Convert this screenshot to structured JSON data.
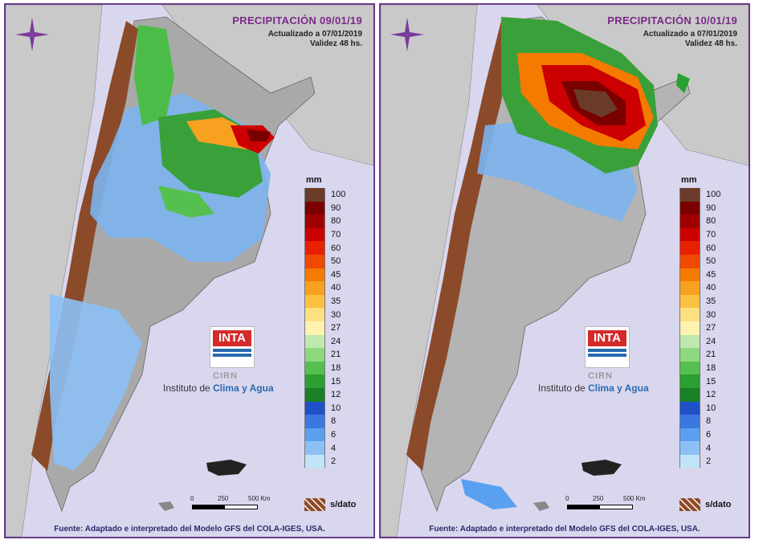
{
  "panels": [
    {
      "title": "PRECIPITACIÓN 09/01/19",
      "updated": "Actualizado a 07/01/2019",
      "validity": "Validez 48 hs."
    },
    {
      "title": "PRECIPITACIÓN 10/01/19",
      "updated": "Actualizado a 07/01/2019",
      "validity": "Validez 48 hs."
    }
  ],
  "legend": {
    "unit": "mm",
    "levels": [
      {
        "label": "100",
        "color": "#6b3b2a"
      },
      {
        "label": "90",
        "color": "#7a0000"
      },
      {
        "label": "80",
        "color": "#a00000"
      },
      {
        "label": "70",
        "color": "#cc0000"
      },
      {
        "label": "60",
        "color": "#e82000"
      },
      {
        "label": "50",
        "color": "#f04a00"
      },
      {
        "label": "45",
        "color": "#f57a00"
      },
      {
        "label": "40",
        "color": "#f8a020"
      },
      {
        "label": "35",
        "color": "#fbc040"
      },
      {
        "label": "30",
        "color": "#fde080"
      },
      {
        "label": "27",
        "color": "#fff3b0"
      },
      {
        "label": "24",
        "color": "#bfe8b0"
      },
      {
        "label": "21",
        "color": "#8ed880"
      },
      {
        "label": "18",
        "color": "#55c050"
      },
      {
        "label": "15",
        "color": "#2aa030"
      },
      {
        "label": "12",
        "color": "#1a8028"
      },
      {
        "label": "10",
        "color": "#2050c8"
      },
      {
        "label": "8",
        "color": "#3a78e0"
      },
      {
        "label": "6",
        "color": "#5aa0f0"
      },
      {
        "label": "4",
        "color": "#8cc0f5"
      },
      {
        "label": "2",
        "color": "#c0e4fa"
      }
    ],
    "no_data_label": "s/dato"
  },
  "logo": {
    "inta": "INTA",
    "cirn": "CIRN",
    "institute_prefix": "Instituto de",
    "institute_highlight": "Clima y Agua"
  },
  "scale": {
    "zero": "0",
    "mid": "250",
    "end": "500 Km"
  },
  "source": "Fuente: Adaptado e interpretado del Modelo GFS del COLA-IGES, USA.",
  "icons": {
    "compass": "compass-rose-icon",
    "no_data": "hatched-swatch-icon"
  }
}
